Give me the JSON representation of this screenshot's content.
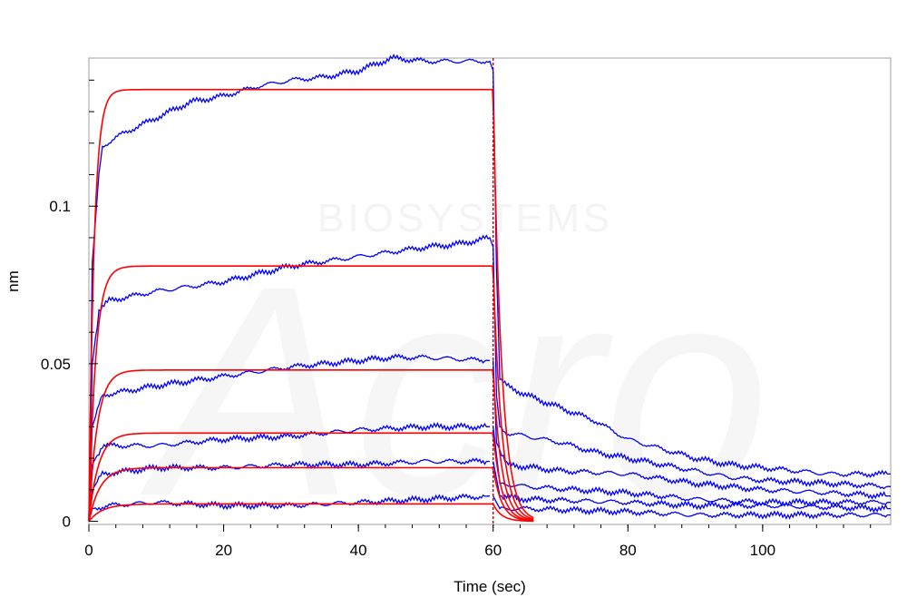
{
  "watermark": {
    "brand": "Acro",
    "subtitle": "BIOSYSTEMS"
  },
  "chart_data": {
    "type": "line",
    "title": "",
    "xlabel": "Time (sec)",
    "ylabel": "nm",
    "xlim": [
      0,
      119
    ],
    "ylim": [
      -0.001,
      0.147
    ],
    "x_ticks": [
      0,
      20,
      40,
      60,
      80,
      100
    ],
    "x_tick_labels": [
      "0",
      "20",
      "40",
      "60",
      "80",
      "100"
    ],
    "y_ticks": [
      0,
      0.05,
      0.1
    ],
    "y_tick_labels": [
      "0",
      "0.05",
      "0.1"
    ],
    "association_end": 60,
    "grid": false,
    "legend": "none",
    "colors": {
      "measured": "#0000ff",
      "fit": "#ff0000",
      "marker": "#cc0000",
      "axis": "#a0a0a0"
    },
    "series": [
      {
        "role": "measured",
        "values": [
          [
            0,
            0.0
          ],
          [
            0.5,
            0.082
          ],
          [
            1.5,
            0.11
          ],
          [
            2,
            0.119
          ],
          [
            5,
            0.123
          ],
          [
            10,
            0.128
          ],
          [
            15,
            0.133
          ],
          [
            20,
            0.135
          ],
          [
            25,
            0.138
          ],
          [
            30,
            0.14
          ],
          [
            35,
            0.141
          ],
          [
            40,
            0.143
          ],
          [
            45,
            0.147
          ],
          [
            50,
            0.146
          ],
          [
            55,
            0.146
          ],
          [
            59.5,
            0.146
          ],
          [
            60,
            0.143
          ]
        ]
      },
      {
        "role": "measured",
        "values": [
          [
            0,
            0.0
          ],
          [
            0.5,
            0.05
          ],
          [
            1.5,
            0.067
          ],
          [
            3,
            0.07
          ],
          [
            10,
            0.073
          ],
          [
            20,
            0.076
          ],
          [
            30,
            0.081
          ],
          [
            40,
            0.084
          ],
          [
            50,
            0.087
          ],
          [
            55,
            0.088
          ],
          [
            59.5,
            0.09
          ],
          [
            60,
            0.087
          ]
        ]
      },
      {
        "role": "measured",
        "values": [
          [
            0,
            0.0
          ],
          [
            0.5,
            0.03
          ],
          [
            2,
            0.04
          ],
          [
            10,
            0.043
          ],
          [
            20,
            0.046
          ],
          [
            30,
            0.049
          ],
          [
            40,
            0.051
          ],
          [
            45,
            0.052
          ],
          [
            50,
            0.052
          ],
          [
            59.5,
            0.051
          ]
        ]
      },
      {
        "role": "measured",
        "values": [
          [
            0,
            0.0
          ],
          [
            0.5,
            0.018
          ],
          [
            2,
            0.024
          ],
          [
            10,
            0.024
          ],
          [
            20,
            0.026
          ],
          [
            30,
            0.027
          ],
          [
            40,
            0.029
          ],
          [
            50,
            0.03
          ],
          [
            59.5,
            0.03
          ]
        ]
      },
      {
        "role": "measured",
        "values": [
          [
            0,
            0.0
          ],
          [
            0.5,
            0.01
          ],
          [
            2,
            0.015
          ],
          [
            10,
            0.017
          ],
          [
            20,
            0.017
          ],
          [
            30,
            0.018
          ],
          [
            40,
            0.018
          ],
          [
            50,
            0.019
          ],
          [
            59.5,
            0.019
          ]
        ]
      },
      {
        "role": "measured",
        "values": [
          [
            0,
            0.0
          ],
          [
            0.5,
            0.004
          ],
          [
            3,
            0.005
          ],
          [
            10,
            0.006
          ],
          [
            20,
            0.005
          ],
          [
            30,
            0.005
          ],
          [
            40,
            0.006
          ],
          [
            50,
            0.007
          ],
          [
            59.5,
            0.008
          ]
        ]
      },
      {
        "role": "measured",
        "values": [
          [
            60,
            0.143
          ],
          [
            60.5,
            0.08
          ],
          [
            61,
            0.045
          ],
          [
            62,
            0.043
          ],
          [
            65,
            0.04
          ],
          [
            70,
            0.036
          ],
          [
            75,
            0.032
          ],
          [
            80,
            0.026
          ],
          [
            85,
            0.023
          ],
          [
            90,
            0.02
          ],
          [
            95,
            0.018
          ],
          [
            100,
            0.017
          ],
          [
            105,
            0.016
          ],
          [
            110,
            0.015
          ],
          [
            115,
            0.015
          ],
          [
            119,
            0.015
          ]
        ]
      },
      {
        "role": "measured",
        "values": [
          [
            60,
            0.087
          ],
          [
            60.5,
            0.04
          ],
          [
            61,
            0.03
          ],
          [
            62,
            0.028
          ],
          [
            65,
            0.027
          ],
          [
            70,
            0.025
          ],
          [
            75,
            0.022
          ],
          [
            80,
            0.02
          ],
          [
            85,
            0.018
          ],
          [
            90,
            0.016
          ],
          [
            95,
            0.014
          ],
          [
            100,
            0.013
          ],
          [
            110,
            0.012
          ],
          [
            119,
            0.011
          ]
        ]
      },
      {
        "role": "measured",
        "values": [
          [
            60,
            0.051
          ],
          [
            60.5,
            0.025
          ],
          [
            62,
            0.018
          ],
          [
            70,
            0.016
          ],
          [
            80,
            0.015
          ],
          [
            90,
            0.012
          ],
          [
            100,
            0.01
          ],
          [
            110,
            0.009
          ],
          [
            119,
            0.008
          ]
        ]
      },
      {
        "role": "measured",
        "values": [
          [
            60,
            0.03
          ],
          [
            61,
            0.012
          ],
          [
            65,
            0.011
          ],
          [
            80,
            0.009
          ],
          [
            90,
            0.007
          ],
          [
            100,
            0.006
          ],
          [
            110,
            0.006
          ],
          [
            119,
            0.006
          ]
        ]
      },
      {
        "role": "measured",
        "values": [
          [
            60,
            0.019
          ],
          [
            61,
            0.008
          ],
          [
            65,
            0.007
          ],
          [
            80,
            0.006
          ],
          [
            90,
            0.005
          ],
          [
            100,
            0.005
          ],
          [
            119,
            0.004
          ]
        ]
      },
      {
        "role": "measured",
        "values": [
          [
            60,
            0.008
          ],
          [
            61,
            0.004
          ],
          [
            65,
            0.004
          ],
          [
            80,
            0.003
          ],
          [
            90,
            0.002
          ],
          [
            100,
            0.002
          ],
          [
            119,
            0.002
          ]
        ]
      },
      {
        "role": "fit",
        "plateau": 0.137,
        "kon": 1.3,
        "koff": 0.8
      },
      {
        "role": "fit",
        "plateau": 0.081,
        "kon": 1.0,
        "koff": 0.8
      },
      {
        "role": "fit",
        "plateau": 0.048,
        "kon": 0.8,
        "koff": 0.8
      },
      {
        "role": "fit",
        "plateau": 0.028,
        "kon": 0.7,
        "koff": 0.8
      },
      {
        "role": "fit",
        "plateau": 0.017,
        "kon": 0.6,
        "koff": 0.8
      },
      {
        "role": "fit",
        "plateau": 0.0055,
        "kon": 0.5,
        "koff": 0.8
      }
    ]
  }
}
